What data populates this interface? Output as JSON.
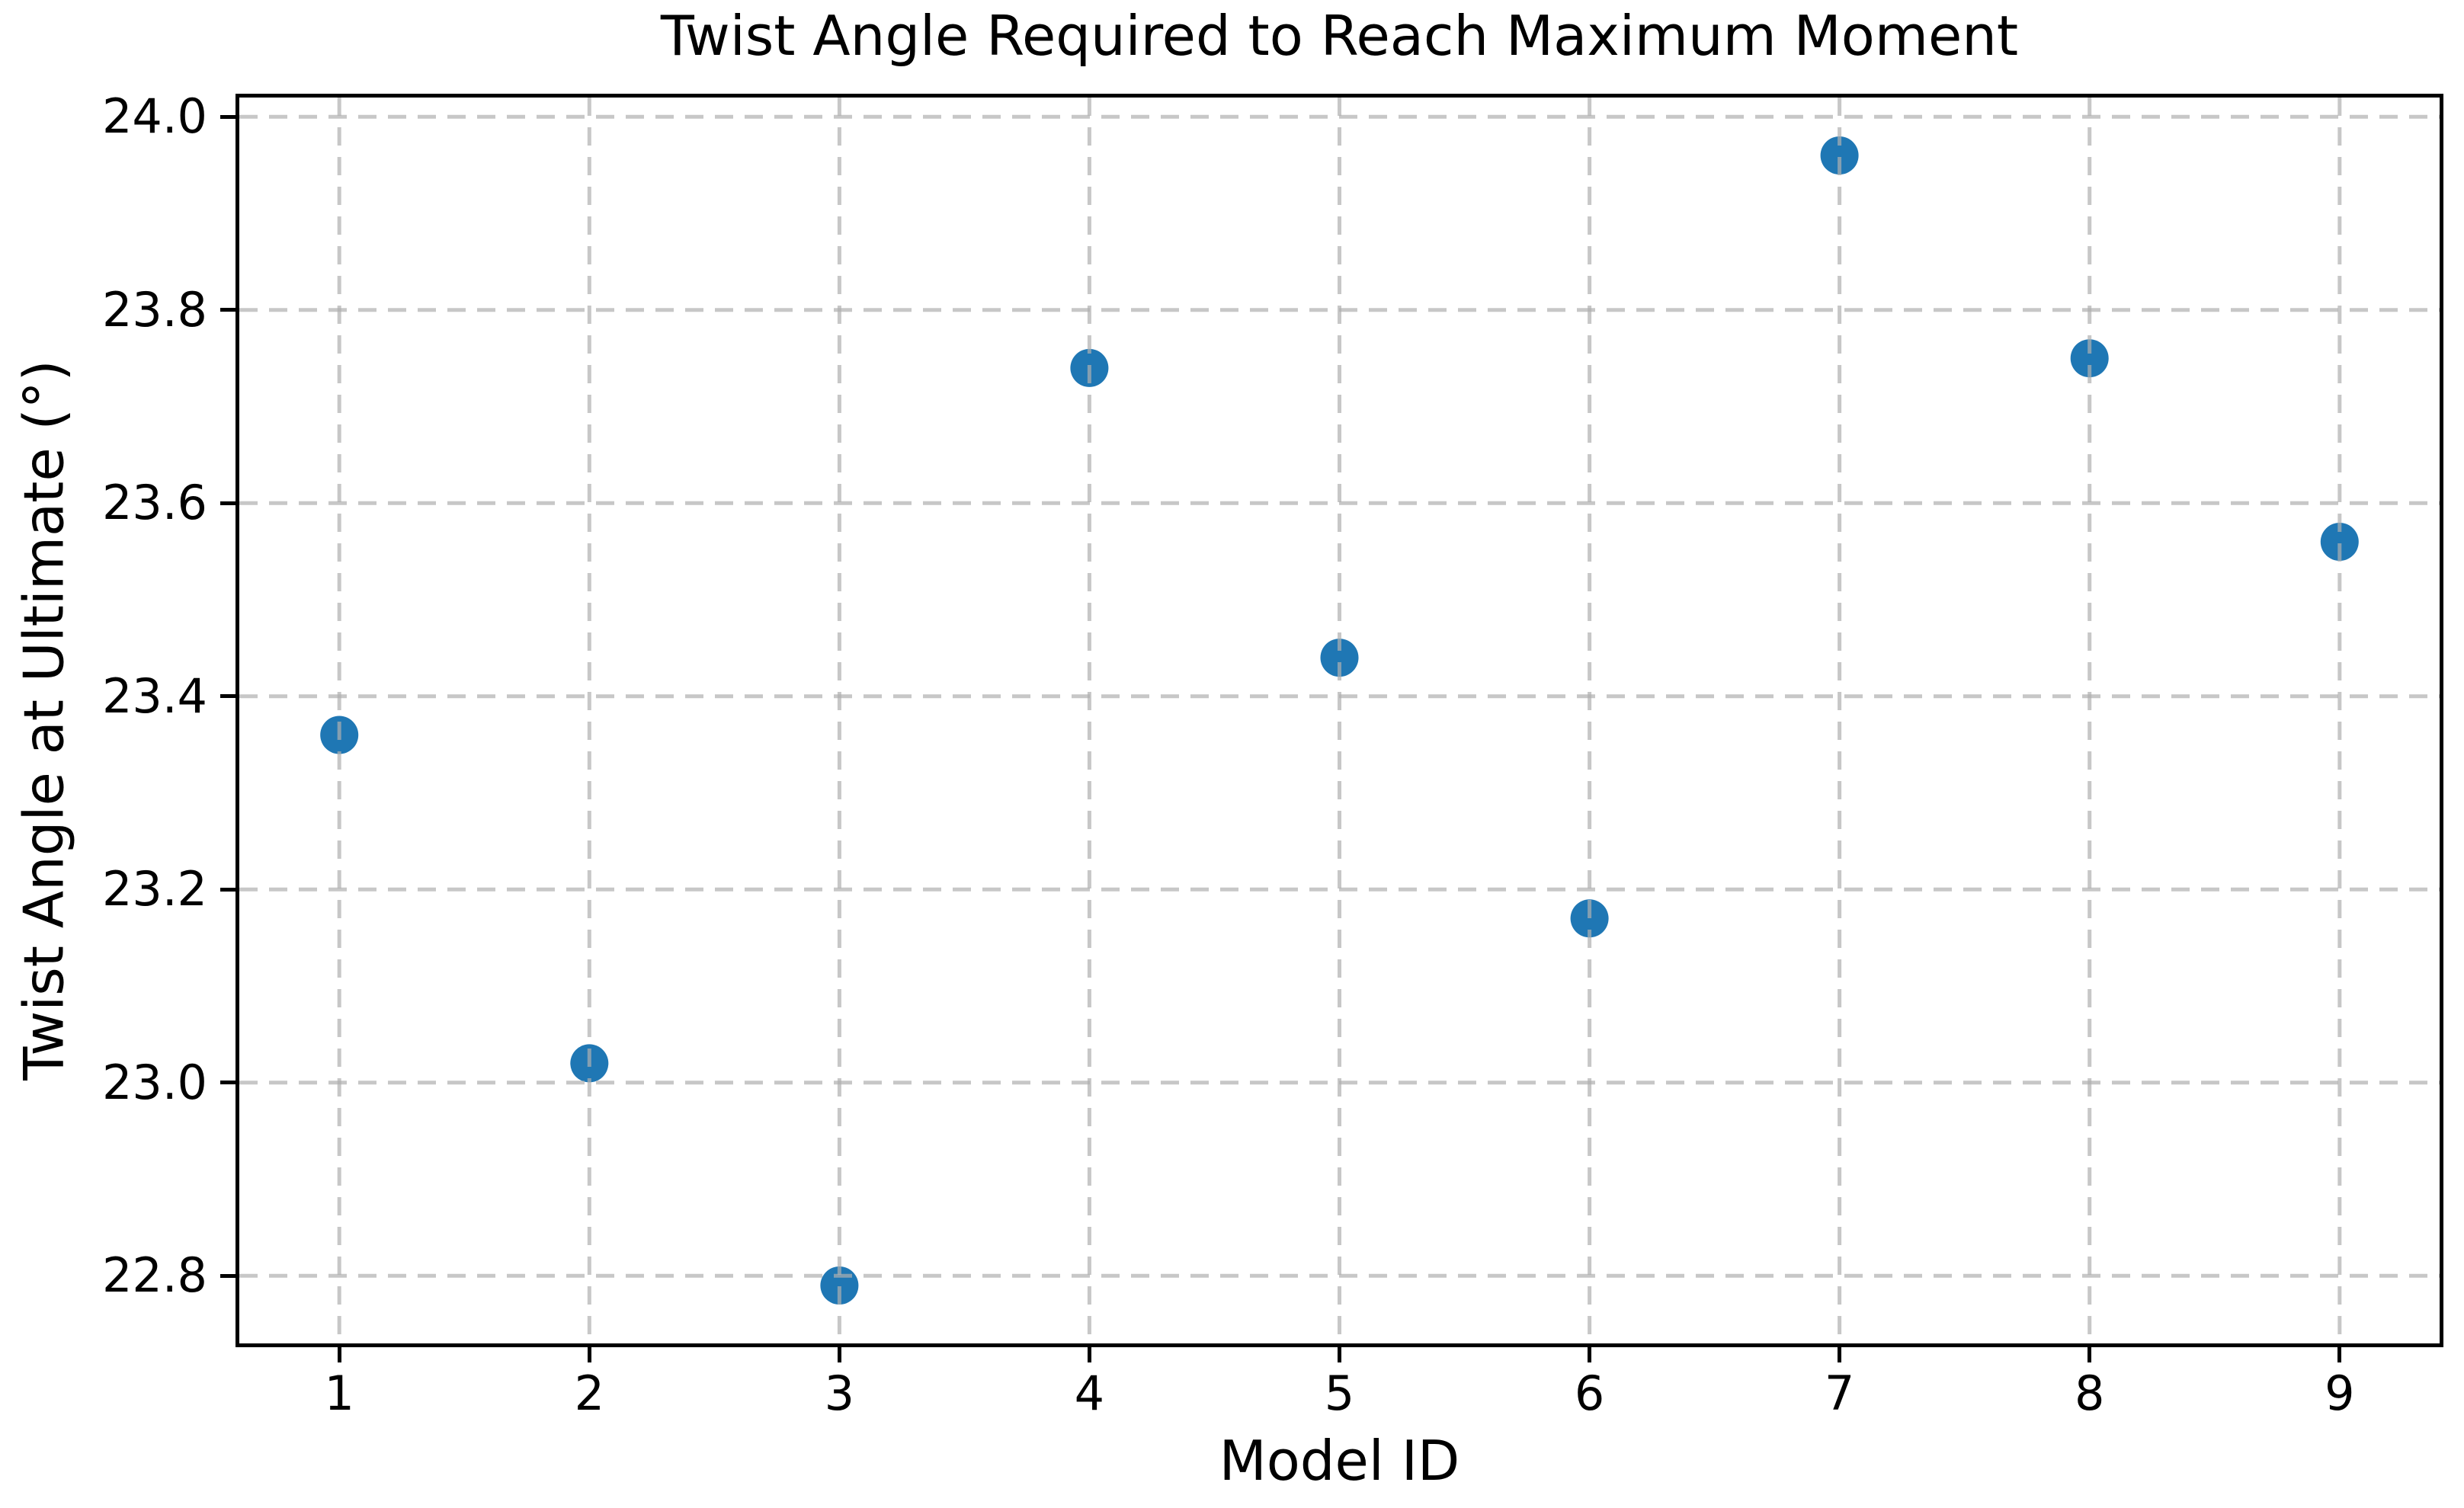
{
  "chart_data": {
    "type": "scatter",
    "title": "Twist Angle Required to Reach Maximum Moment",
    "xlabel": "Model ID",
    "ylabel": "Twist Angle at Ultimate (°)",
    "x": [
      1,
      2,
      3,
      4,
      5,
      6,
      7,
      8,
      9
    ],
    "y": [
      23.36,
      23.02,
      22.79,
      23.74,
      23.44,
      23.17,
      23.96,
      23.75,
      23.56
    ],
    "xlim": [
      0.6,
      9.4
    ],
    "ylim": [
      22.73,
      24.02
    ],
    "x_ticks": [
      1,
      2,
      3,
      4,
      5,
      6,
      7,
      8,
      9
    ],
    "x_tick_labels": [
      "1",
      "2",
      "3",
      "4",
      "5",
      "6",
      "7",
      "8",
      "9"
    ],
    "y_ticks": [
      22.8,
      23.0,
      23.2,
      23.4,
      23.6,
      23.8,
      24.0
    ],
    "y_tick_labels": [
      "22.8",
      "23.0",
      "23.2",
      "23.4",
      "23.6",
      "23.8",
      "24.0"
    ],
    "grid": true,
    "grid_style": "dashed",
    "grid_on_top": true,
    "legend": "none",
    "marker_color": "#1f77b4",
    "marker_radius_px": 25,
    "grid_color": "#b0b0b0",
    "grid_opacity": 0.7,
    "axis_color": "#000000"
  }
}
